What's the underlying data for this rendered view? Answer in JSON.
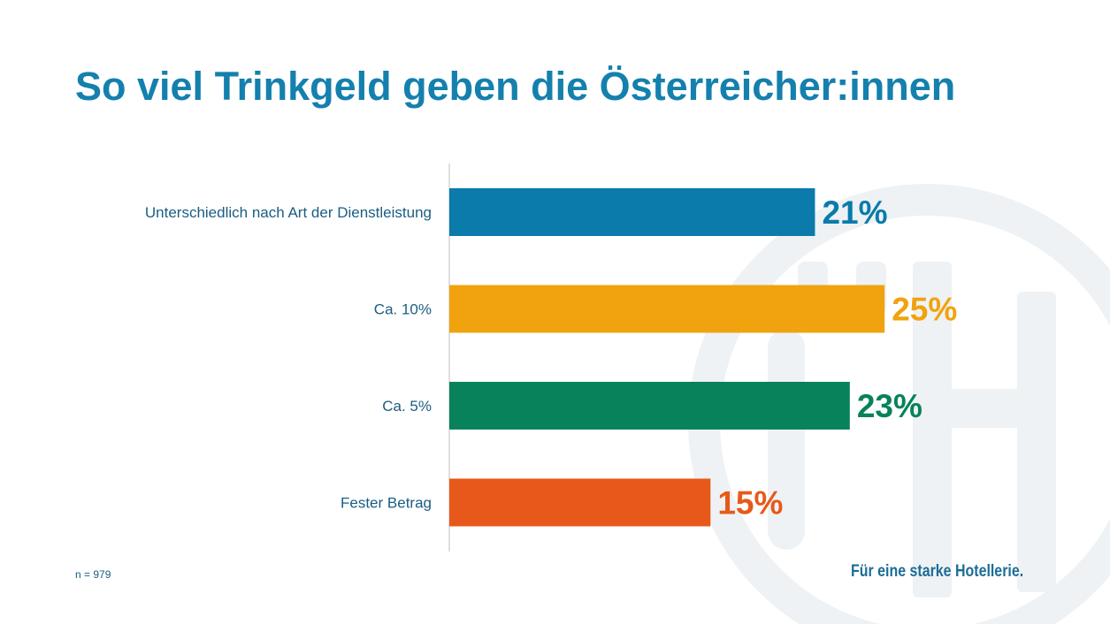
{
  "title": "So viel Trinkgeld geben die Österreicher:innen",
  "footnote": "n = 979",
  "tagline": "Für eine starke Hotellerie.",
  "watermark": {
    "icon": "oehv-logo-icon",
    "color": "#eef2f5"
  },
  "chart_data": {
    "type": "bar",
    "orientation": "horizontal",
    "title": "So viel Trinkgeld geben die Österreicher:innen",
    "categories": [
      "Unterschiedlich nach Art der Dienstleistung",
      "Ca. 10%",
      "Ca. 5%",
      "Fester Betrag"
    ],
    "values": [
      21,
      25,
      23,
      15
    ],
    "labels": [
      "21%",
      "25%",
      "23%",
      "15%"
    ],
    "colors": [
      "#0a7bab",
      "#f0a30e",
      "#07825a",
      "#e7591a"
    ],
    "xlabel": "",
    "ylabel": "",
    "xlim": [
      0,
      32
    ],
    "unit": "%",
    "grid": false,
    "legend": "none"
  }
}
